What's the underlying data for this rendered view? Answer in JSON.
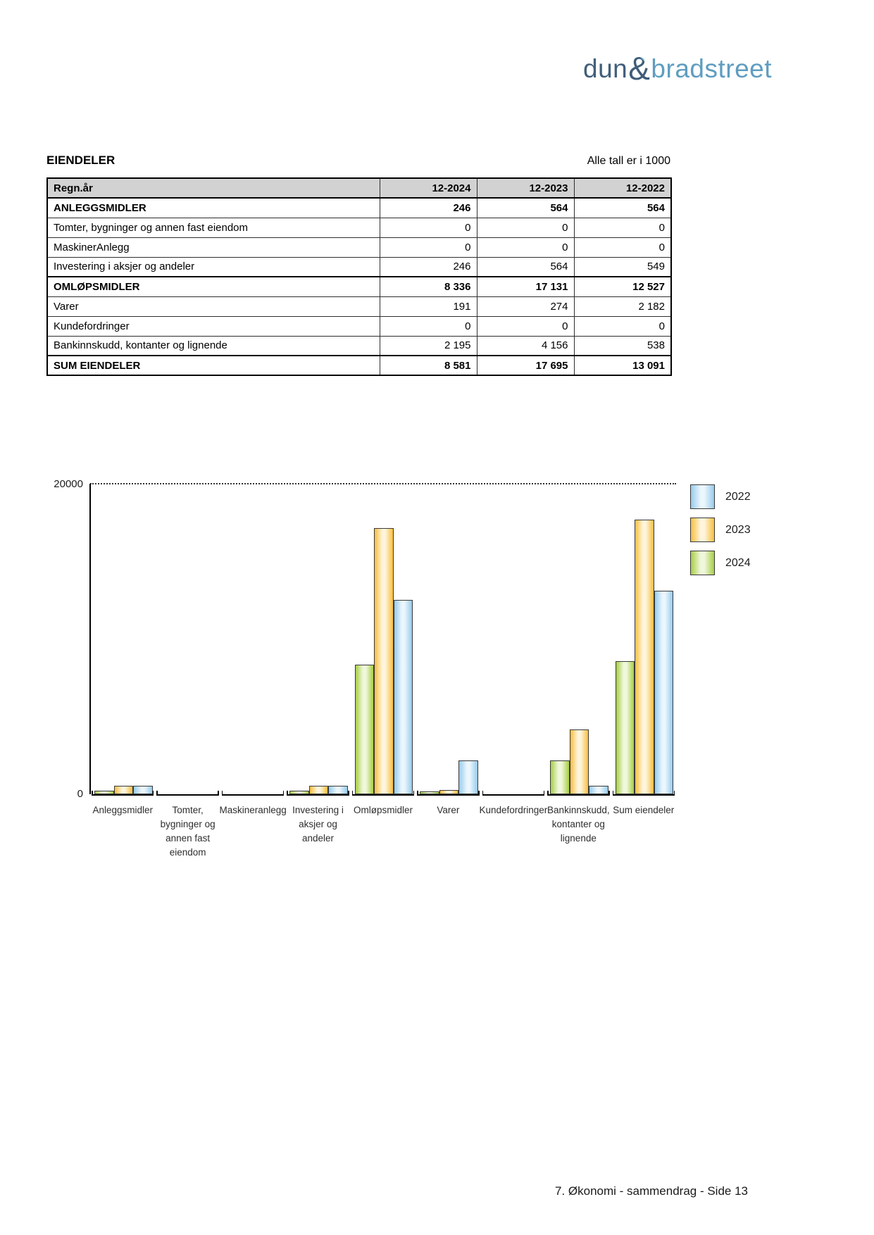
{
  "logo": {
    "dun": "dun",
    "amp": "&",
    "bradstreet": "bradstreet",
    "dark_color": "#3E5C78",
    "light_color": "#5F9DC0"
  },
  "section": {
    "title": "EIENDELER",
    "units_note": "Alle tall er i 1000"
  },
  "table": {
    "header": [
      "Regn.år",
      "12-2024",
      "12-2023",
      "12-2022"
    ],
    "rows": [
      {
        "label": "ANLEGGSMIDLER",
        "values": [
          "246",
          "564",
          "564"
        ],
        "bold": true
      },
      {
        "label": "Tomter, bygninger og annen fast eiendom",
        "values": [
          "0",
          "0",
          "0"
        ],
        "bold": false
      },
      {
        "label": "MaskinerAnlegg",
        "values": [
          "0",
          "0",
          "0"
        ],
        "bold": false
      },
      {
        "label": "Investering i aksjer og andeler",
        "values": [
          "246",
          "564",
          "549"
        ],
        "bold": false
      },
      {
        "label": "OMLØPSMIDLER",
        "values": [
          "8 336",
          "17 131",
          "12 527"
        ],
        "bold": true
      },
      {
        "label": "Varer",
        "values": [
          "191",
          "274",
          "2 182"
        ],
        "bold": false
      },
      {
        "label": "Kundefordringer",
        "values": [
          "0",
          "0",
          "0"
        ],
        "bold": false
      },
      {
        "label": "Bankinnskudd, kontanter og lignende",
        "values": [
          "2 195",
          "4 156",
          "538"
        ],
        "bold": false
      },
      {
        "label": "SUM EIENDELER",
        "values": [
          "8 581",
          "17 695",
          "13 091"
        ],
        "bold": true
      }
    ]
  },
  "chart_data": {
    "type": "bar",
    "title": "",
    "xlabel": "",
    "ylabel": "",
    "categories": [
      "Anleggsmidler",
      "Tomter, bygninger og annen fast eiendom",
      "Maskineranlegg",
      "Investering i aksjer og andeler",
      "Omløpsmidler",
      "Varer",
      "Kundefordringer",
      "Bankinnskudd, kontanter og lignende",
      "Sum eiendeler"
    ],
    "categories_lines": [
      [
        "Anleggsmidler"
      ],
      [
        "Tomter,",
        "bygninger og",
        "annen fast",
        "eiendom"
      ],
      [
        "Maskineranlegg"
      ],
      [
        "Investering i",
        "aksjer og",
        "andeler"
      ],
      [
        "Omløpsmidler"
      ],
      [
        "Varer"
      ],
      [
        "Kundefordringer"
      ],
      [
        "Bankinnskudd,",
        "kontanter og",
        "lignende"
      ],
      [
        "Sum eiendeler"
      ]
    ],
    "series": [
      {
        "name": "2024",
        "values": [
          246,
          0,
          0,
          246,
          8336,
          191,
          0,
          2195,
          8581
        ],
        "edge_color": "#A6CE45",
        "center_color": "#F0F8DC"
      },
      {
        "name": "2023",
        "values": [
          564,
          0,
          0,
          564,
          17131,
          274,
          0,
          4156,
          17695
        ],
        "edge_color": "#F8BE3E",
        "center_color": "#FEF5DC"
      },
      {
        "name": "2022",
        "values": [
          564,
          0,
          0,
          549,
          12527,
          2182,
          0,
          538,
          13091
        ],
        "edge_color": "#96CBEC",
        "center_color": "#EBF6FD"
      }
    ],
    "legend": [
      "2022",
      "2023",
      "2024"
    ],
    "legend_position": "top-right",
    "ylim": [
      0,
      20000
    ],
    "ytick_labels": {
      "top": "20000",
      "bottom": "0"
    },
    "grid": "single dotted gridline at y=20000"
  },
  "footer": {
    "text": "7. Økonomi - sammendrag - Side 13"
  }
}
